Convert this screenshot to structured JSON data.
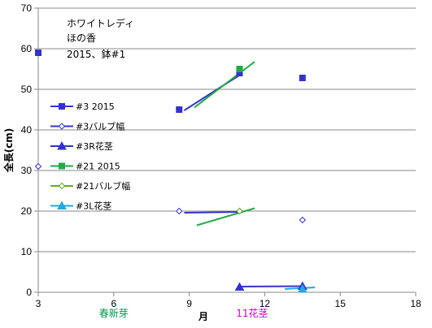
{
  "chart_data": {
    "type": "scatter",
    "title_lines": [
      "ホワイトレディ",
      "ほの香",
      "2015、鉢#1"
    ],
    "xlabel": "月",
    "ylabel": "全長(cm)",
    "xlim": [
      3,
      18
    ],
    "ylim": [
      0,
      70
    ],
    "xticks": [
      3,
      6,
      9,
      12,
      15,
      18
    ],
    "yticks": [
      0,
      10,
      20,
      30,
      40,
      50,
      60,
      70
    ],
    "grid": "horizontal",
    "legend_position": "left",
    "annotations": [
      {
        "text": "春新芽",
        "x": 6,
        "color": "#00994c"
      },
      {
        "text": "11花茎",
        "x": 11.5,
        "color": "#cc00cc"
      }
    ],
    "series": [
      {
        "name": "#3 2015",
        "color": "#3333cc",
        "marker": "square",
        "filled": true,
        "points": [
          [
            3,
            59
          ],
          [
            8.6,
            45
          ],
          [
            11,
            54
          ],
          [
            13.5,
            52.8
          ]
        ]
      },
      {
        "name": "#3バルブ幅",
        "color": "#3333cc",
        "marker": "diamond",
        "filled": false,
        "points": [
          [
            3,
            31
          ],
          [
            8.6,
            20
          ],
          [
            11,
            20
          ],
          [
            13.5,
            17.8
          ]
        ]
      },
      {
        "name": "#3R花茎",
        "color": "#3333cc",
        "marker": "triangle",
        "filled": true,
        "points": [
          [
            11,
            1.3
          ],
          [
            13.5,
            1.5
          ]
        ]
      },
      {
        "name": "#21 2015",
        "color": "#22aa44",
        "marker": "square",
        "filled": true,
        "points": [
          [
            11,
            55
          ]
        ]
      },
      {
        "name": "#21バルブ幅",
        "color": "#66aa22",
        "marker": "diamond",
        "filled": false,
        "points": [
          [
            11,
            20
          ]
        ]
      },
      {
        "name": "#3L花茎",
        "color": "#22aadd",
        "marker": "triangle",
        "filled": true,
        "points": [
          [
            13.5,
            0.8
          ]
        ]
      }
    ],
    "trend_lines": [
      {
        "color": "#3333cc",
        "points": [
          [
            8.8,
            44.8
          ],
          [
            11.0,
            53.5
          ]
        ]
      },
      {
        "color": "#22aa44",
        "points": [
          [
            9.2,
            45.5
          ],
          [
            11.6,
            56.8
          ]
        ]
      },
      {
        "color": "#3333cc",
        "points": [
          [
            8.8,
            19.6
          ],
          [
            11.0,
            19.8
          ]
        ]
      },
      {
        "color": "#22aa44",
        "points": [
          [
            9.3,
            16.5
          ],
          [
            11.6,
            20.7
          ]
        ]
      },
      {
        "color": "#3333cc",
        "points": [
          [
            11.0,
            1.4
          ],
          [
            13.5,
            1.5
          ]
        ]
      },
      {
        "color": "#22aadd",
        "points": [
          [
            12.8,
            0.8
          ],
          [
            14.0,
            1.2
          ]
        ]
      }
    ]
  }
}
